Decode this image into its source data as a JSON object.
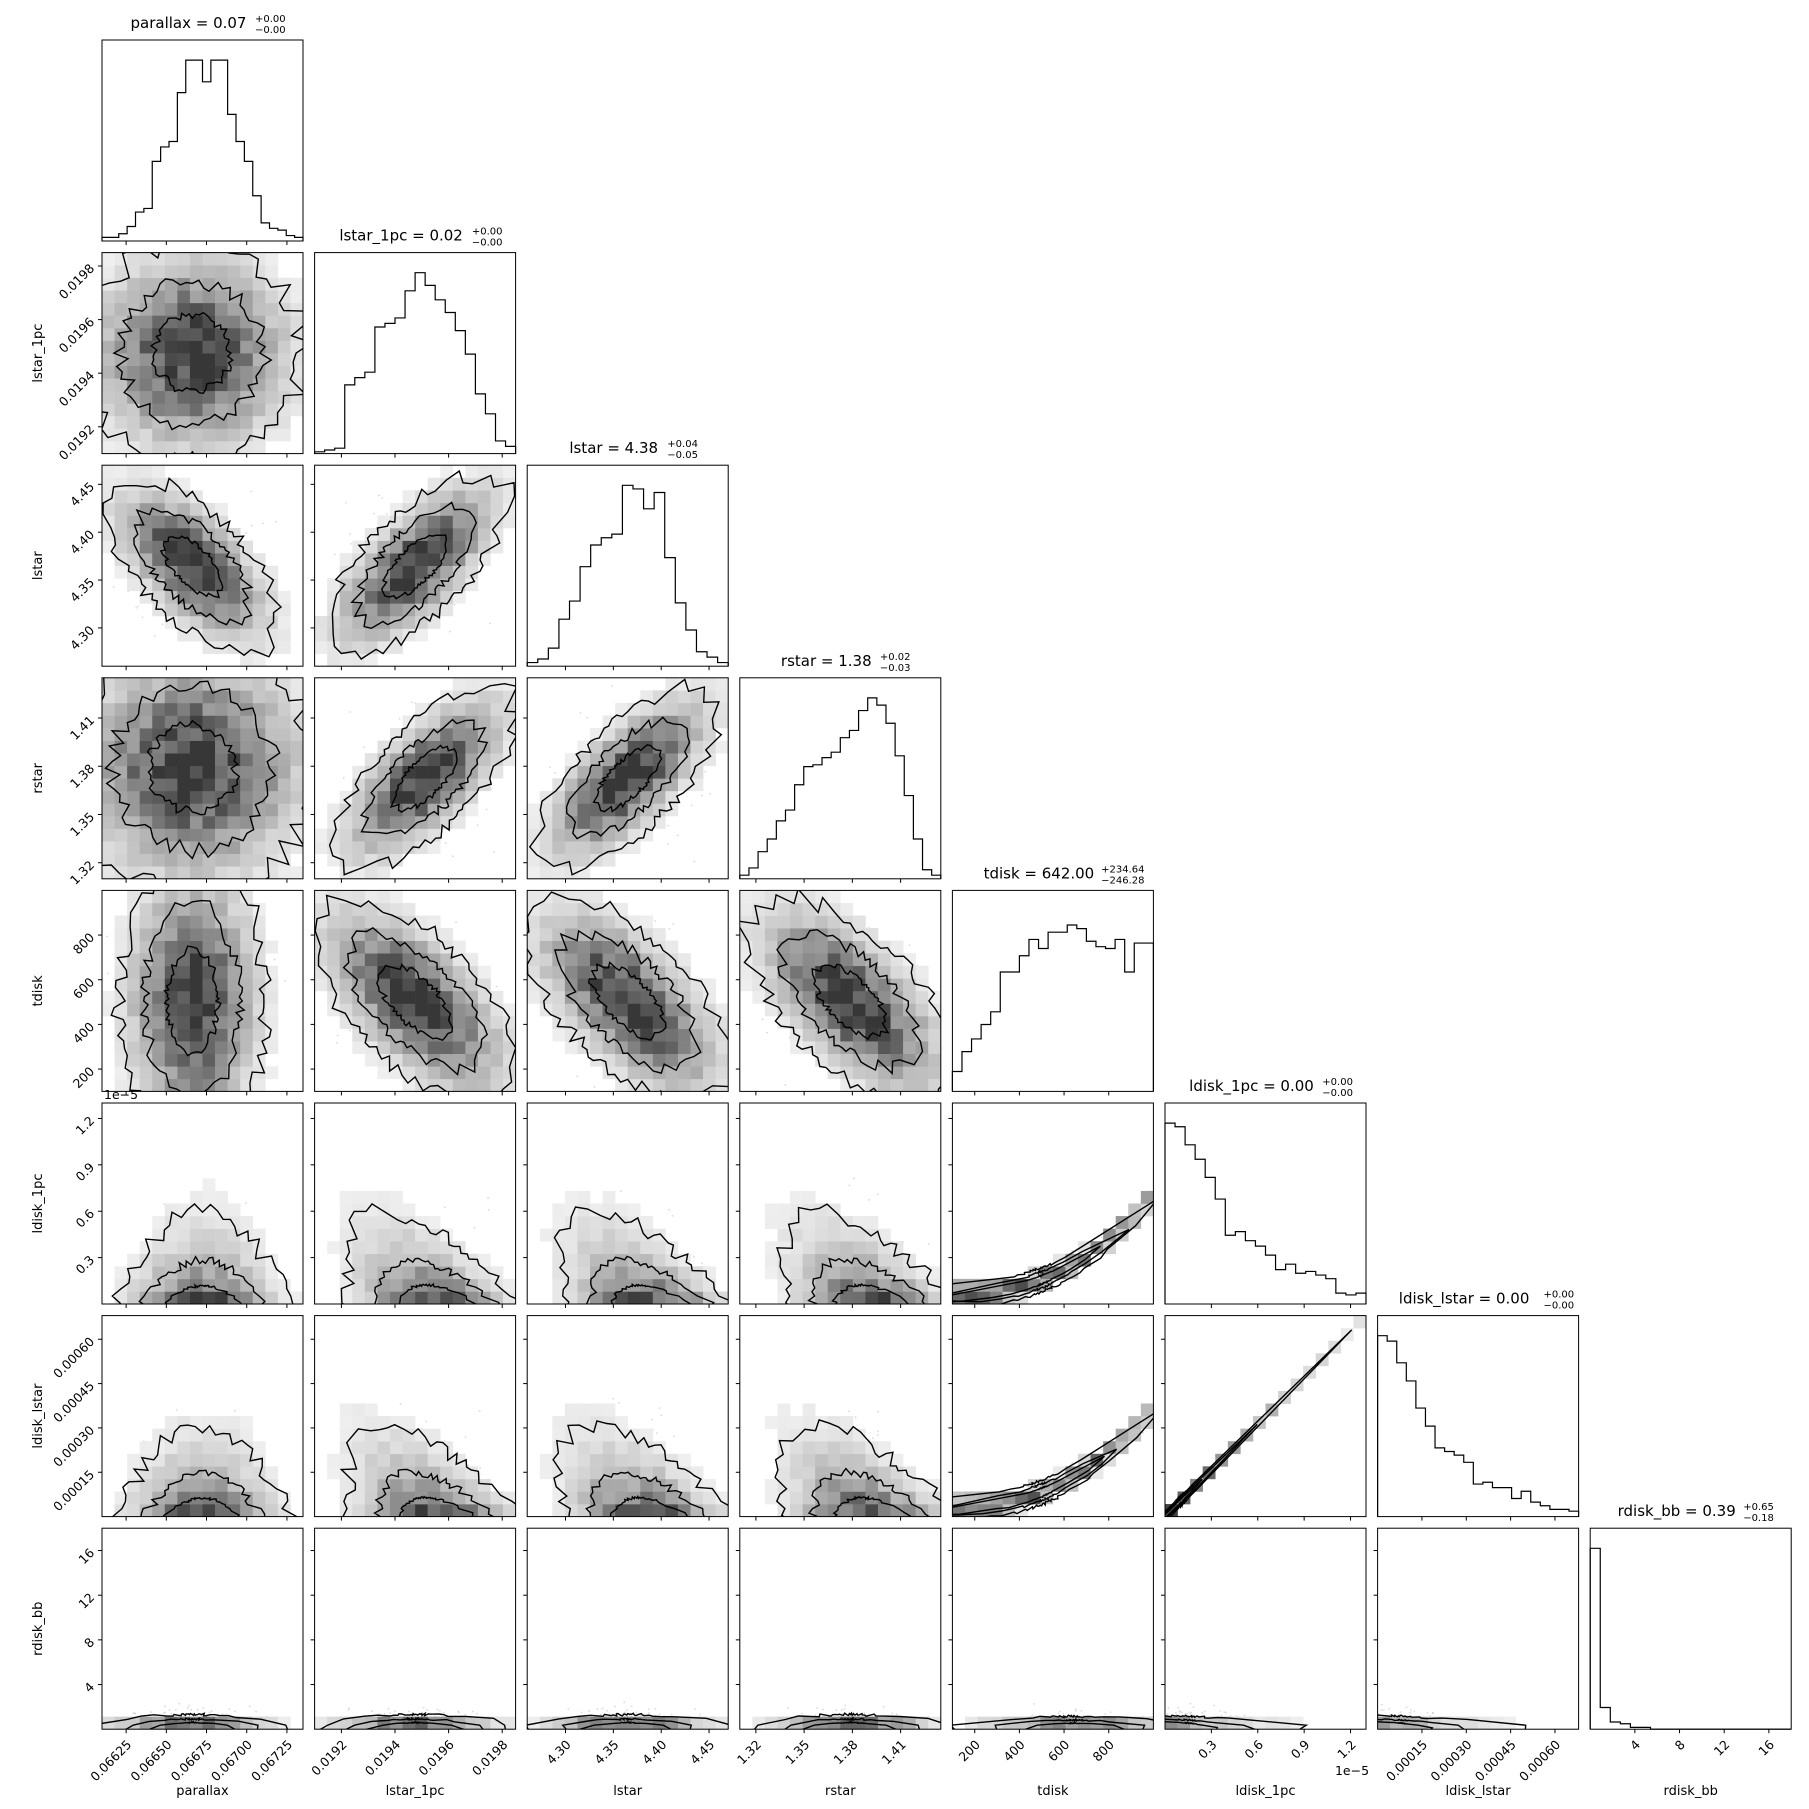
{
  "chart_data": {
    "type": "corner",
    "parameters": [
      {
        "name": "parallax",
        "title": "parallax = 0.07",
        "sup": "+0.00",
        "sub": "−0.00",
        "range": [
          0.0661,
          0.06735
        ],
        "ticks": [
          0.06625,
          0.0665,
          0.06675,
          0.067,
          0.06725
        ],
        "tick_labels": [
          "0.06625",
          "0.06650",
          "0.06675",
          "0.06700",
          "0.06725"
        ],
        "hist": [
          0.02,
          0.02,
          0.04,
          0.08,
          0.16,
          0.18,
          0.44,
          0.52,
          0.55,
          0.82,
          1.0,
          1.0,
          0.88,
          1.0,
          1.0,
          0.7,
          0.55,
          0.44,
          0.25,
          0.1,
          0.07,
          0.06,
          0.03,
          0.02
        ]
      },
      {
        "name": "lstar_1pc",
        "title": "lstar_1pc = 0.02",
        "sup": "+0.00",
        "sub": "−0.00",
        "range": [
          0.0191,
          0.01985
        ],
        "ticks": [
          0.0192,
          0.0194,
          0.0196,
          0.0198
        ],
        "tick_labels": [
          "0.0192",
          "0.0194",
          "0.0196",
          "0.0198"
        ],
        "hist": [
          0.01,
          0.02,
          0.03,
          0.38,
          0.42,
          0.45,
          0.7,
          0.72,
          0.75,
          0.9,
          1.0,
          0.93,
          0.85,
          0.78,
          0.68,
          0.55,
          0.33,
          0.22,
          0.07,
          0.04
        ]
      },
      {
        "name": "lstar",
        "title": "lstar = 4.38",
        "sup": "+0.04",
        "sub": "−0.05",
        "range": [
          4.26,
          4.47
        ],
        "ticks": [
          4.3,
          4.35,
          4.4,
          4.45
        ],
        "tick_labels": [
          "4.30",
          "4.35",
          "4.40",
          "4.45"
        ],
        "hist": [
          0.02,
          0.04,
          0.1,
          0.26,
          0.36,
          0.55,
          0.67,
          0.71,
          0.73,
          1.0,
          0.98,
          0.87,
          0.96,
          0.6,
          0.35,
          0.2,
          0.08,
          0.05,
          0.02
        ]
      },
      {
        "name": "rstar",
        "title": "rstar = 1.38",
        "sup": "+0.02",
        "sub": "−0.03",
        "range": [
          1.31,
          1.435
        ],
        "ticks": [
          1.32,
          1.35,
          1.38,
          1.41
        ],
        "tick_labels": [
          "1.32",
          "1.35",
          "1.38",
          "1.41"
        ],
        "hist": [
          0.02,
          0.06,
          0.15,
          0.22,
          0.32,
          0.38,
          0.52,
          0.62,
          0.63,
          0.67,
          0.7,
          0.78,
          0.82,
          0.93,
          1.0,
          0.96,
          0.86,
          0.68,
          0.46,
          0.22,
          0.05,
          0.02
        ]
      },
      {
        "name": "tdisk",
        "title": "tdisk = 642.00",
        "sup": "+234.64",
        "sub": "−246.28",
        "range": [
          100,
          1000
        ],
        "ticks": [
          200,
          400,
          600,
          800
        ],
        "tick_labels": [
          "200",
          "400",
          "600",
          "800"
        ],
        "hist": [
          0.11,
          0.22,
          0.29,
          0.37,
          0.44,
          0.66,
          0.66,
          0.75,
          0.84,
          0.79,
          0.88,
          0.88,
          0.92,
          0.9,
          0.83,
          0.8,
          0.79,
          0.84,
          0.66,
          0.82,
          0.82
        ]
      },
      {
        "name": "ldisk_1pc",
        "title": "ldisk_1pc = 0.00",
        "sup": "+0.00",
        "sub": "−0.00",
        "range": [
          0.0,
          1.3
        ],
        "ticks": [
          0.3,
          0.6,
          0.9,
          1.2
        ],
        "tick_labels": [
          "0.3",
          "0.6",
          "0.9",
          "1.2"
        ],
        "offset_text": "1e−5",
        "hist": [
          1.0,
          0.98,
          0.88,
          0.8,
          0.7,
          0.58,
          0.38,
          0.4,
          0.35,
          0.32,
          0.27,
          0.19,
          0.22,
          0.17,
          0.18,
          0.16,
          0.14,
          0.06,
          0.05,
          0.06
        ]
      },
      {
        "name": "ldisk_lstar",
        "title": "ldisk_lstar = 0.00",
        "sup": "+0.00",
        "sub": "−0.00",
        "range": [
          0.0,
          0.00068
        ],
        "ticks": [
          0.00015,
          0.0003,
          0.00045,
          0.0006
        ],
        "tick_labels": [
          "0.00015",
          "0.00030",
          "0.00045",
          "0.00060"
        ],
        "hist": [
          1.0,
          0.97,
          0.85,
          0.75,
          0.6,
          0.5,
          0.38,
          0.36,
          0.34,
          0.3,
          0.18,
          0.19,
          0.16,
          0.16,
          0.1,
          0.14,
          0.08,
          0.06,
          0.04,
          0.04,
          0.03
        ]
      },
      {
        "name": "rdisk_bb",
        "title": "rdisk_bb = 0.39",
        "sup": "+0.65",
        "sub": "−0.18",
        "range": [
          0.0,
          18.0
        ],
        "ticks": [
          4,
          8,
          12,
          16
        ],
        "tick_labels": [
          "4",
          "8",
          "12",
          "16"
        ],
        "hist": [
          1.0,
          0.12,
          0.04,
          0.03,
          0.01,
          0.01,
          0.0,
          0.0,
          0.0,
          0.0,
          0.0,
          0.0,
          0.0,
          0.0,
          0.0,
          0.0,
          0.0,
          0.0,
          0.0,
          0.0
        ]
      }
    ],
    "pairs": [
      {
        "x": 0,
        "y": 1,
        "shape": "blob",
        "cx": 0.45,
        "cy": 0.5,
        "spread": 0.28
      },
      {
        "x": 0,
        "y": 2,
        "shape": "neg",
        "cx": 0.45,
        "cy": 0.5,
        "spread": 0.3
      },
      {
        "x": 1,
        "y": 2,
        "shape": "pos",
        "cx": 0.5,
        "cy": 0.5,
        "spread": 0.32
      },
      {
        "x": 0,
        "y": 3,
        "shape": "blob",
        "cx": 0.45,
        "cy": 0.55,
        "spread": 0.32
      },
      {
        "x": 1,
        "y": 3,
        "shape": "pos",
        "cx": 0.55,
        "cy": 0.5,
        "spread": 0.32
      },
      {
        "x": 2,
        "y": 3,
        "shape": "pos",
        "cx": 0.5,
        "cy": 0.5,
        "spread": 0.32
      },
      {
        "x": 0,
        "y": 4,
        "shape": "tall",
        "cx": 0.45,
        "cy": 0.45,
        "spread": 0.34
      },
      {
        "x": 1,
        "y": 4,
        "shape": "neg",
        "cx": 0.5,
        "cy": 0.45,
        "spread": 0.36
      },
      {
        "x": 2,
        "y": 4,
        "shape": "neg",
        "cx": 0.5,
        "cy": 0.45,
        "spread": 0.36
      },
      {
        "x": 3,
        "y": 4,
        "shape": "neg",
        "cx": 0.55,
        "cy": 0.45,
        "spread": 0.36
      },
      {
        "x": 0,
        "y": 5,
        "shape": "floor",
        "cx": 0.5,
        "cy": 0.1,
        "spread": 0.35
      },
      {
        "x": 1,
        "y": 5,
        "shape": "floor-neg",
        "cx": 0.55,
        "cy": 0.1,
        "spread": 0.35
      },
      {
        "x": 2,
        "y": 5,
        "shape": "floor-neg",
        "cx": 0.55,
        "cy": 0.1,
        "spread": 0.35
      },
      {
        "x": 3,
        "y": 5,
        "shape": "floor-neg",
        "cx": 0.6,
        "cy": 0.1,
        "spread": 0.35
      },
      {
        "x": 4,
        "y": 5,
        "shape": "curve",
        "cx": 0.5,
        "cy": 0.1,
        "spread": 0.35
      },
      {
        "x": 0,
        "y": 6,
        "shape": "floor",
        "cx": 0.5,
        "cy": 0.1,
        "spread": 0.35
      },
      {
        "x": 1,
        "y": 6,
        "shape": "floor-neg",
        "cx": 0.55,
        "cy": 0.1,
        "spread": 0.35
      },
      {
        "x": 2,
        "y": 6,
        "shape": "floor-neg",
        "cx": 0.55,
        "cy": 0.1,
        "spread": 0.35
      },
      {
        "x": 3,
        "y": 6,
        "shape": "floor-neg",
        "cx": 0.6,
        "cy": 0.1,
        "spread": 0.35
      },
      {
        "x": 4,
        "y": 6,
        "shape": "curve",
        "cx": 0.5,
        "cy": 0.1,
        "spread": 0.35
      },
      {
        "x": 5,
        "y": 6,
        "shape": "diag",
        "cx": 0.2,
        "cy": 0.2,
        "spread": 0.35
      },
      {
        "x": 0,
        "y": 7,
        "shape": "band",
        "cx": 0.45,
        "cy": 0.04,
        "spread": 0.35
      },
      {
        "x": 1,
        "y": 7,
        "shape": "band",
        "cx": 0.5,
        "cy": 0.04,
        "spread": 0.35
      },
      {
        "x": 2,
        "y": 7,
        "shape": "band",
        "cx": 0.5,
        "cy": 0.04,
        "spread": 0.35
      },
      {
        "x": 3,
        "y": 7,
        "shape": "band",
        "cx": 0.55,
        "cy": 0.04,
        "spread": 0.35
      },
      {
        "x": 4,
        "y": 7,
        "shape": "band-curve",
        "cx": 0.6,
        "cy": 0.04,
        "spread": 0.35
      },
      {
        "x": 5,
        "y": 7,
        "shape": "band-left",
        "cx": 0.2,
        "cy": 0.04,
        "spread": 0.35
      },
      {
        "x": 6,
        "y": 7,
        "shape": "band-left",
        "cx": 0.25,
        "cy": 0.04,
        "spread": 0.35
      }
    ]
  }
}
